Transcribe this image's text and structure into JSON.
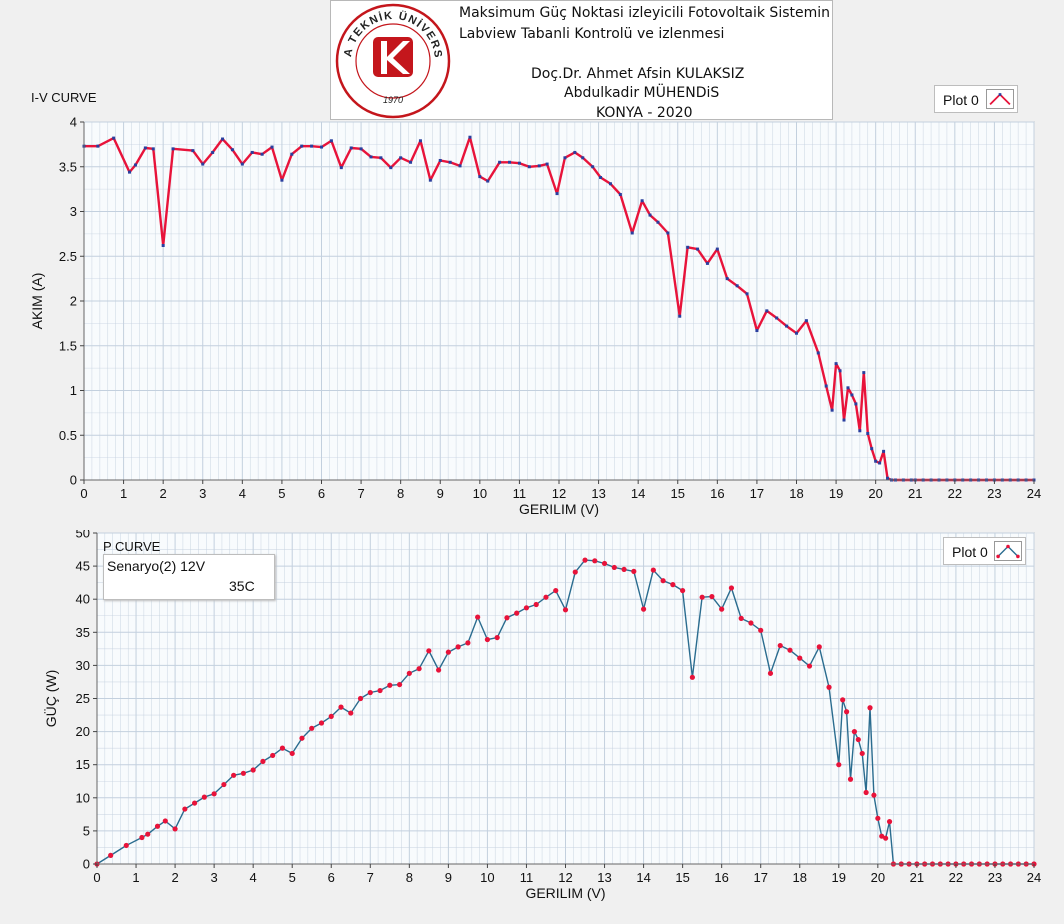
{
  "header": {
    "line1": "Maksimum Güç Noktasi izleyicili Fotovoltaik Sistemin",
    "line2": "Labview Tabanli Kontrolü ve izlenmesi",
    "line3": "Doç.Dr. Ahmet Afsin KULAKSIZ",
    "line4": "Abdulkadir MÜHENDiS",
    "line5": "KONYA - 2020",
    "logo_text": "KONYA TEKNİK ÜNİVERSİTESİ",
    "logo_year": "1970"
  },
  "colors": {
    "plot_bg": "#f8fbfd",
    "grid": "#c3d0de",
    "iv_line": "#e8133a",
    "iv_marker": "#2a3f9e",
    "p_line": "#2a6c8f",
    "p_marker": "#e8133a",
    "logo_red": "#c4161c"
  },
  "iv_panel": {
    "title": "I-V CURVE",
    "legend_label": "Plot 0"
  },
  "p_panel": {
    "title": "P CURVE",
    "legend_label": "Plot 0",
    "scenario_line1": "Senaryo(2)  12V",
    "scenario_line2": "35C"
  },
  "chart_data": [
    {
      "type": "line",
      "title": "I-V CURVE",
      "xlabel": "GERILIM (V)",
      "ylabel": "AKIM (A)",
      "xlim": [
        0,
        24
      ],
      "ylim": [
        0,
        4
      ],
      "xticks": [
        0,
        1,
        2,
        3,
        4,
        5,
        6,
        7,
        8,
        9,
        10,
        11,
        12,
        13,
        14,
        15,
        16,
        17,
        18,
        19,
        20,
        21,
        22,
        23,
        24
      ],
      "yticks": [
        0,
        0.5,
        1,
        1.5,
        2,
        2.5,
        3,
        3.5,
        4
      ],
      "ytick_labels": [
        "0",
        "0.5",
        "1",
        "1.5",
        "2",
        "2.5",
        "3",
        "3.5",
        "4"
      ],
      "grid": true,
      "legend": "top-right",
      "series": [
        {
          "name": "Plot 0",
          "x": [
            0.0,
            0.35,
            0.75,
            1.15,
            1.3,
            1.55,
            1.75,
            2.0,
            2.25,
            2.75,
            3.0,
            3.25,
            3.5,
            3.75,
            4.0,
            4.25,
            4.5,
            4.75,
            5.0,
            5.25,
            5.5,
            5.75,
            6.0,
            6.25,
            6.5,
            6.75,
            7.0,
            7.25,
            7.5,
            7.75,
            8.0,
            8.25,
            8.5,
            8.75,
            9.0,
            9.25,
            9.5,
            9.75,
            10.0,
            10.2,
            10.5,
            10.75,
            11.0,
            11.25,
            11.5,
            11.7,
            11.95,
            12.15,
            12.4,
            12.6,
            12.85,
            13.05,
            13.3,
            13.55,
            13.85,
            14.1,
            14.3,
            14.5,
            14.75,
            15.05,
            15.25,
            15.5,
            15.75,
            16.0,
            16.25,
            16.5,
            16.75,
            17.0,
            17.25,
            17.5,
            17.75,
            18.0,
            18.25,
            18.55,
            18.75,
            18.9,
            19.0,
            19.1,
            19.2,
            19.3,
            19.4,
            19.5,
            19.6,
            19.7,
            19.8,
            19.9,
            20.0,
            20.1,
            20.2,
            20.3,
            20.4,
            20.5,
            21,
            22,
            23,
            24
          ],
          "y": [
            3.73,
            3.73,
            3.82,
            3.44,
            3.52,
            3.71,
            3.7,
            2.62,
            3.7,
            3.68,
            3.53,
            3.66,
            3.81,
            3.69,
            3.53,
            3.66,
            3.64,
            3.72,
            3.35,
            3.64,
            3.73,
            3.73,
            3.72,
            3.79,
            3.49,
            3.71,
            3.7,
            3.61,
            3.6,
            3.49,
            3.6,
            3.55,
            3.79,
            3.35,
            3.57,
            3.55,
            3.51,
            3.83,
            3.39,
            3.34,
            3.55,
            3.55,
            3.54,
            3.5,
            3.51,
            3.53,
            3.2,
            3.6,
            3.66,
            3.6,
            3.5,
            3.38,
            3.31,
            3.19,
            2.76,
            3.12,
            2.96,
            2.88,
            2.76,
            1.83,
            2.6,
            2.58,
            2.42,
            2.58,
            2.25,
            2.17,
            2.08,
            1.67,
            1.89,
            1.81,
            1.72,
            1.64,
            1.78,
            1.42,
            1.05,
            0.78,
            1.3,
            1.22,
            0.67,
            1.03,
            0.95,
            0.85,
            0.55,
            1.2,
            0.52,
            0.35,
            0.21,
            0.19,
            0.32,
            0.02,
            0,
            0,
            0,
            0,
            0,
            0
          ]
        }
      ]
    },
    {
      "type": "line",
      "title": "P CURVE",
      "xlabel": "GERILIM (V)",
      "ylabel": "GÜÇ (W)",
      "xlim": [
        0,
        24
      ],
      "ylim": [
        0,
        50
      ],
      "xticks": [
        0,
        1,
        2,
        3,
        4,
        5,
        6,
        7,
        8,
        9,
        10,
        11,
        12,
        13,
        14,
        15,
        16,
        17,
        18,
        19,
        20,
        21,
        22,
        23,
        24
      ],
      "yticks": [
        0,
        5,
        10,
        15,
        20,
        25,
        30,
        35,
        40,
        45,
        50
      ],
      "grid": true,
      "legend": "top-right",
      "series": [
        {
          "name": "Plot 0",
          "x": [
            0.0,
            0.35,
            0.75,
            1.15,
            1.3,
            1.55,
            1.75,
            2.0,
            2.25,
            2.5,
            2.75,
            3.0,
            3.25,
            3.5,
            3.75,
            4.0,
            4.25,
            4.5,
            4.75,
            5.0,
            5.25,
            5.5,
            5.75,
            6.0,
            6.25,
            6.5,
            6.75,
            7.0,
            7.25,
            7.5,
            7.75,
            8.0,
            8.25,
            8.5,
            8.75,
            9.0,
            9.25,
            9.5,
            9.75,
            10.0,
            10.25,
            10.5,
            10.75,
            11.0,
            11.25,
            11.5,
            11.75,
            12.0,
            12.25,
            12.5,
            12.75,
            13.0,
            13.25,
            13.5,
            13.75,
            14.0,
            14.25,
            14.5,
            14.75,
            15.0,
            15.25,
            15.5,
            15.75,
            16.0,
            16.25,
            16.5,
            16.75,
            17.0,
            17.25,
            17.5,
            17.75,
            18.0,
            18.25,
            18.5,
            18.75,
            19.0,
            19.1,
            19.2,
            19.3,
            19.4,
            19.5,
            19.6,
            19.7,
            19.8,
            19.9,
            20.0,
            20.1,
            20.2,
            20.3,
            20.4,
            21,
            22,
            23,
            24
          ],
          "y": [
            0.0,
            1.3,
            2.8,
            4.0,
            4.5,
            5.7,
            6.5,
            5.3,
            8.3,
            9.2,
            10.1,
            10.6,
            12.0,
            13.4,
            13.7,
            14.2,
            15.5,
            16.4,
            17.5,
            16.7,
            19.0,
            20.5,
            21.3,
            22.3,
            23.7,
            22.8,
            25.0,
            25.9,
            26.2,
            27.0,
            27.1,
            28.8,
            29.5,
            32.2,
            29.3,
            32.0,
            32.8,
            33.4,
            37.3,
            33.9,
            34.2,
            37.2,
            37.9,
            38.7,
            39.2,
            40.3,
            41.3,
            38.4,
            44.1,
            45.9,
            45.8,
            45.4,
            44.8,
            44.5,
            44.2,
            38.5,
            44.4,
            42.8,
            42.2,
            41.3,
            28.2,
            40.3,
            40.4,
            38.5,
            41.7,
            37.1,
            36.4,
            35.3,
            28.8,
            33.0,
            32.3,
            31.1,
            29.9,
            32.8,
            26.7,
            15.0,
            24.8,
            23.0,
            12.8,
            20.0,
            18.8,
            16.7,
            10.8,
            23.6,
            10.4,
            6.9,
            4.2,
            3.9,
            6.4,
            0,
            0,
            0,
            0,
            0
          ]
        }
      ]
    }
  ]
}
